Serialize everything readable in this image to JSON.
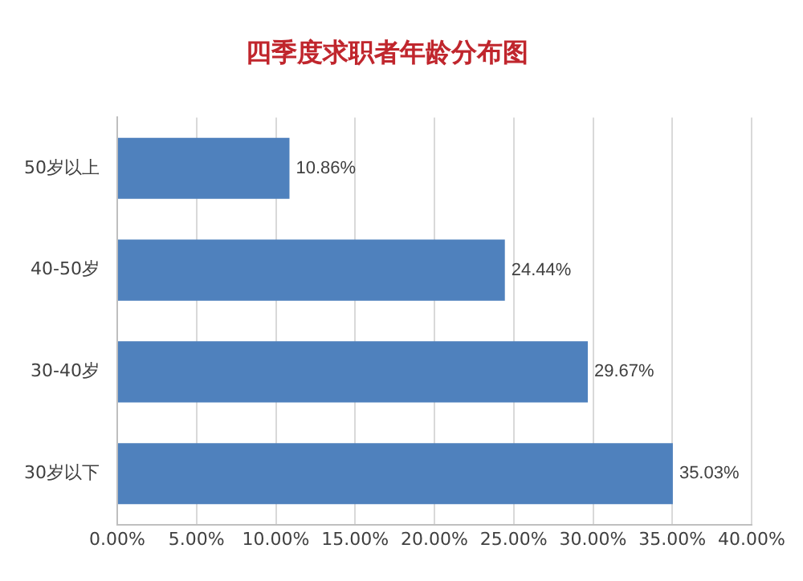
{
  "chart_data": {
    "type": "bar",
    "orientation": "horizontal",
    "title": "四季度求职者年龄分布图",
    "categories": [
      "50岁以上",
      "40-50岁",
      "30-40岁",
      "30岁以下"
    ],
    "values": [
      10.86,
      24.44,
      29.67,
      35.03
    ],
    "value_labels": [
      "10.86%",
      "24.44%",
      "29.67%",
      "35.03%"
    ],
    "color": "#4f81bd",
    "xlim": [
      0,
      40
    ],
    "xticks": [
      {
        "value": 0,
        "label": "0.00%"
      },
      {
        "value": 5,
        "label": "5.00%"
      },
      {
        "value": 10,
        "label": "10.00%"
      },
      {
        "value": 15,
        "label": "15.00%"
      },
      {
        "value": 20,
        "label": "20.00%"
      },
      {
        "value": 25,
        "label": "25.00%"
      },
      {
        "value": 30,
        "label": "30.00%"
      },
      {
        "value": 35,
        "label": "35.00%"
      },
      {
        "value": 40,
        "label": "40.00%"
      }
    ],
    "grid": "x",
    "legend": false
  }
}
